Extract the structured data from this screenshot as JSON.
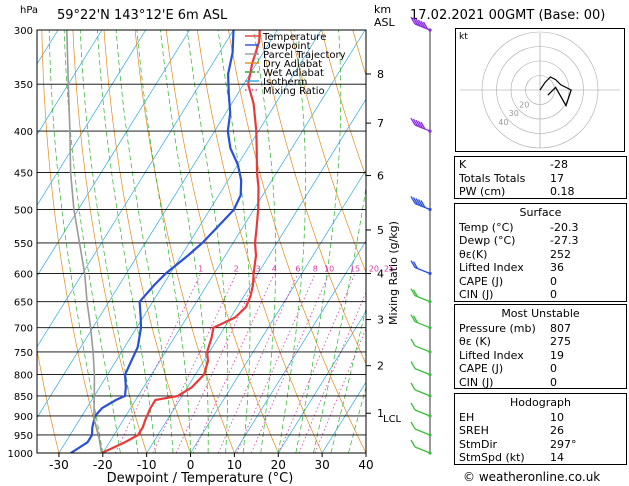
{
  "header": {
    "hpa_unit": "hPa",
    "location": "59°22'N 143°12'E 6m ASL",
    "km_unit": "km",
    "asl_unit": "ASL",
    "datetime": "17.02.2021 00GMT (Base: 00)"
  },
  "legend": [
    {
      "label": "Temperature",
      "color": "#e83a3a"
    },
    {
      "label": "Dewpoint",
      "color": "#2a4fd8"
    },
    {
      "label": "Parcel Trajectory",
      "color": "#999999"
    },
    {
      "label": "Dry Adiabat",
      "color": "#e08b1a"
    },
    {
      "label": "Wet Adiabat",
      "color": "#2bb12b"
    },
    {
      "label": "Isotherm",
      "color": "#2fa8e0"
    },
    {
      "label": "Mixing Ratio",
      "color": "#d63ba8"
    }
  ],
  "chart_data": {
    "type": "line",
    "title": "",
    "xlabel": "Dewpoint / Temperature (°C)",
    "ylabel": "hPa",
    "y2label": "Mixing Ratio (g/kg)",
    "xlim": [
      -35,
      40
    ],
    "ylim": [
      1000,
      300
    ],
    "yscale": "log",
    "pressure_ticks": [
      300,
      350,
      400,
      450,
      500,
      550,
      600,
      650,
      700,
      750,
      800,
      850,
      900,
      950,
      1000
    ],
    "temp_ticks": [
      -30,
      -20,
      -10,
      0,
      10,
      20,
      30,
      40
    ],
    "km_ticks": [
      {
        "label": "8",
        "p": 340
      },
      {
        "label": "7",
        "p": 391
      },
      {
        "label": "6",
        "p": 454
      },
      {
        "label": "5",
        "p": 530
      },
      {
        "label": "4",
        "p": 600
      },
      {
        "label": "3",
        "p": 684
      },
      {
        "label": "2",
        "p": 780
      },
      {
        "label": "1",
        "p": 893
      }
    ],
    "lcl_label": "LCL",
    "lcl_p": 905,
    "mixing_ratio_labels": [
      "1",
      "2",
      "3",
      "4",
      "6",
      "8",
      "10",
      "15",
      "20",
      "25"
    ],
    "mixing_ratios": [
      1,
      2,
      3,
      4,
      6,
      8,
      10,
      15,
      20,
      25
    ],
    "series": [
      {
        "name": "Temperature",
        "color": "#e83a3a",
        "points": [
          [
            1000,
            -20.3
          ],
          [
            990,
            -19
          ],
          [
            970,
            -16.5
          ],
          [
            950,
            -14.5
          ],
          [
            930,
            -14.5
          ],
          [
            910,
            -15
          ],
          [
            880,
            -15.5
          ],
          [
            860,
            -15.5
          ],
          [
            850,
            -11
          ],
          [
            830,
            -9
          ],
          [
            800,
            -8
          ],
          [
            770,
            -9
          ],
          [
            750,
            -10.5
          ],
          [
            720,
            -11.5
          ],
          [
            700,
            -12.5
          ],
          [
            680,
            -9
          ],
          [
            660,
            -8
          ],
          [
            640,
            -8.5
          ],
          [
            620,
            -9.5
          ],
          [
            600,
            -11
          ],
          [
            570,
            -13
          ],
          [
            550,
            -15
          ],
          [
            530,
            -16.5
          ],
          [
            500,
            -19
          ],
          [
            470,
            -22
          ],
          [
            450,
            -24.5
          ],
          [
            420,
            -28
          ],
          [
            400,
            -30.5
          ],
          [
            370,
            -35
          ],
          [
            350,
            -39
          ],
          [
            330,
            -41
          ],
          [
            310,
            -42.5
          ],
          [
            300,
            -44
          ]
        ]
      },
      {
        "name": "Dewpoint",
        "color": "#2a4fd8",
        "points": [
          [
            1000,
            -27.3
          ],
          [
            970,
            -25
          ],
          [
            950,
            -25
          ],
          [
            930,
            -26
          ],
          [
            900,
            -27
          ],
          [
            880,
            -26.5
          ],
          [
            860,
            -24.5
          ],
          [
            850,
            -23
          ],
          [
            830,
            -24
          ],
          [
            800,
            -26
          ],
          [
            770,
            -26.5
          ],
          [
            740,
            -27
          ],
          [
            700,
            -29
          ],
          [
            680,
            -30.5
          ],
          [
            650,
            -33
          ],
          [
            620,
            -32
          ],
          [
            600,
            -31
          ],
          [
            570,
            -28.5
          ],
          [
            550,
            -27
          ],
          [
            520,
            -25.5
          ],
          [
            500,
            -24.5
          ],
          [
            480,
            -25
          ],
          [
            460,
            -27
          ],
          [
            440,
            -30
          ],
          [
            420,
            -34
          ],
          [
            400,
            -37
          ],
          [
            380,
            -39
          ],
          [
            360,
            -42
          ],
          [
            340,
            -45
          ],
          [
            320,
            -47
          ],
          [
            300,
            -50
          ]
        ]
      },
      {
        "name": "Parcel Trajectory",
        "color": "#999999",
        "points": [
          [
            1000,
            -20.3
          ],
          [
            950,
            -23.5
          ],
          [
            905,
            -27
          ],
          [
            850,
            -30
          ],
          [
            800,
            -33
          ],
          [
            750,
            -36.5
          ],
          [
            700,
            -40.5
          ],
          [
            650,
            -45
          ],
          [
            600,
            -49.5
          ],
          [
            550,
            -55
          ],
          [
            500,
            -61
          ],
          [
            450,
            -67
          ],
          [
            400,
            -73
          ],
          [
            350,
            -80
          ],
          [
            300,
            -88
          ]
        ]
      }
    ],
    "wind_barbs": [
      {
        "p": 1000,
        "speed_kt": 5
      },
      {
        "p": 950,
        "speed_kt": 5
      },
      {
        "p": 900,
        "speed_kt": 10
      },
      {
        "p": 850,
        "speed_kt": 10
      },
      {
        "p": 800,
        "speed_kt": 10
      },
      {
        "p": 750,
        "speed_kt": 10
      },
      {
        "p": 700,
        "speed_kt": 15
      },
      {
        "p": 650,
        "speed_kt": 15
      },
      {
        "p": 600,
        "speed_kt": 15
      },
      {
        "p": 500,
        "speed_kt": 45
      },
      {
        "p": 400,
        "speed_kt": 50
      },
      {
        "p": 300,
        "speed_kt": 60
      }
    ]
  },
  "hodograph": {
    "unit_label": "kt",
    "ring_labels": [
      "40",
      "30",
      "20"
    ],
    "points": [
      [
        0,
        0
      ],
      [
        2,
        -3
      ],
      [
        4,
        -5
      ],
      [
        6,
        -4
      ],
      [
        8,
        -2
      ],
      [
        12,
        0
      ],
      [
        10,
        6
      ],
      [
        6,
        -1
      ],
      [
        3,
        2
      ]
    ]
  },
  "indices": [
    {
      "key": "K",
      "value": "-28"
    },
    {
      "key": "Totals Totals",
      "value": "17"
    },
    {
      "key": "PW (cm)",
      "value": "0.18"
    }
  ],
  "surface": {
    "title": "Surface",
    "rows": [
      {
        "key": "Temp (°C)",
        "value": "-20.3"
      },
      {
        "key": "Dewp (°C)",
        "value": "-27.3"
      },
      {
        "key": "θε(K)",
        "value": "252"
      },
      {
        "key": "Lifted Index",
        "value": "36"
      },
      {
        "key": "CAPE (J)",
        "value": "0"
      },
      {
        "key": "CIN (J)",
        "value": "0"
      }
    ]
  },
  "most_unstable": {
    "title": "Most Unstable",
    "rows": [
      {
        "key": "Pressure (mb)",
        "value": "807"
      },
      {
        "key": "θε (K)",
        "value": "275"
      },
      {
        "key": "Lifted Index",
        "value": "19"
      },
      {
        "key": "CAPE (J)",
        "value": "0"
      },
      {
        "key": "CIN (J)",
        "value": "0"
      }
    ]
  },
  "hodograph_table": {
    "title": "Hodograph",
    "rows": [
      {
        "key": "EH",
        "value": "10"
      },
      {
        "key": "SREH",
        "value": "26"
      },
      {
        "key": "StmDir",
        "value": "297°"
      },
      {
        "key": "StmSpd (kt)",
        "value": "14"
      }
    ]
  },
  "footer": {
    "copyright": "© weatheronline.co.uk"
  }
}
